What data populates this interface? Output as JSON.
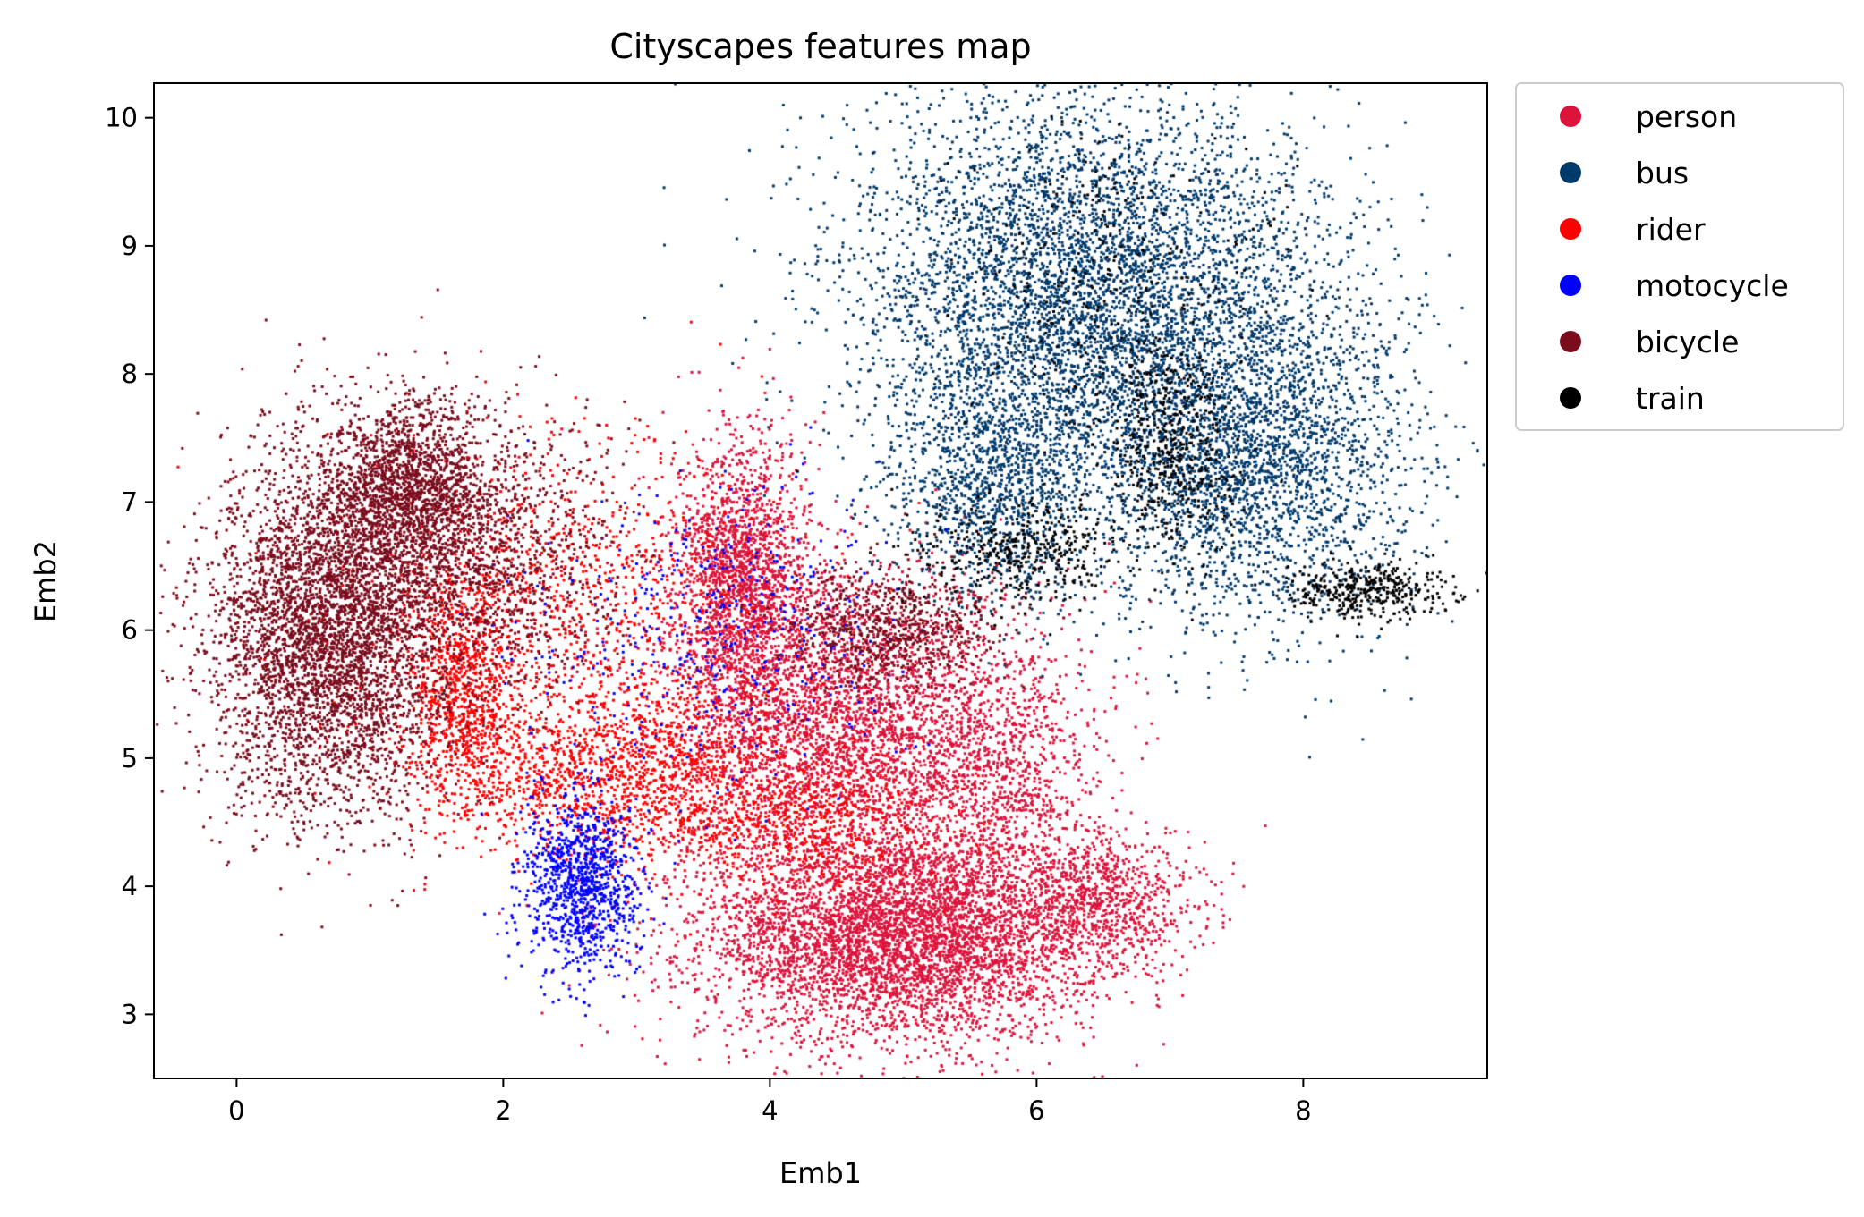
{
  "chart_data": {
    "type": "scatter",
    "title": "Cityscapes features map",
    "xlabel": "Emb1",
    "ylabel": "Emb2",
    "xlim": [
      -0.62,
      9.38
    ],
    "ylim": [
      2.5,
      10.27
    ],
    "xticks": [
      0,
      2,
      4,
      6,
      8
    ],
    "yticks": [
      3,
      4,
      5,
      6,
      7,
      8,
      9,
      10
    ],
    "xtick_labels": [
      "0",
      "2",
      "4",
      "6",
      "8"
    ],
    "ytick_labels": [
      "3",
      "4",
      "5",
      "6",
      "7",
      "8",
      "9",
      "10"
    ],
    "grid": false,
    "legend_position": "outside-top-right",
    "series": [
      {
        "name": "person",
        "color": "#dc143c",
        "approx_points": 12000,
        "clusters": [
          {
            "center": [
              5.0,
              3.6
            ],
            "spread": [
              0.75,
              0.4
            ],
            "weight": 0.42
          },
          {
            "center": [
              4.6,
              5.2
            ],
            "spread": [
              0.7,
              0.6
            ],
            "weight": 0.3
          },
          {
            "center": [
              3.8,
              6.4
            ],
            "spread": [
              0.25,
              0.55
            ],
            "weight": 0.16
          },
          {
            "center": [
              6.5,
              3.9
            ],
            "spread": [
              0.35,
              0.25
            ],
            "weight": 0.06
          },
          {
            "center": [
              5.8,
              4.9
            ],
            "spread": [
              0.35,
              0.5
            ],
            "weight": 0.06
          }
        ]
      },
      {
        "name": "bus",
        "color": "#003a6b",
        "approx_points": 9000,
        "clusters": [
          {
            "center": [
              6.4,
              8.7
            ],
            "spread": [
              0.9,
              0.75
            ],
            "weight": 0.55
          },
          {
            "center": [
              7.6,
              7.3
            ],
            "spread": [
              0.6,
              0.65
            ],
            "weight": 0.3
          },
          {
            "center": [
              5.7,
              7.2
            ],
            "spread": [
              0.4,
              0.5
            ],
            "weight": 0.15
          }
        ]
      },
      {
        "name": "rider",
        "color": "#ff0000",
        "approx_points": 4000,
        "clusters": [
          {
            "center": [
              2.8,
              4.9
            ],
            "spread": [
              0.7,
              0.35
            ],
            "weight": 0.4
          },
          {
            "center": [
              2.5,
              6.3
            ],
            "spread": [
              0.8,
              0.6
            ],
            "weight": 0.25
          },
          {
            "center": [
              4.3,
              4.5
            ],
            "spread": [
              0.5,
              0.3
            ],
            "weight": 0.15
          },
          {
            "center": [
              1.7,
              5.5
            ],
            "spread": [
              0.2,
              0.4
            ],
            "weight": 0.2
          }
        ]
      },
      {
        "name": "motocycle",
        "color": "#0000ff",
        "approx_points": 1500,
        "clusters": [
          {
            "center": [
              2.6,
              4.0
            ],
            "spread": [
              0.22,
              0.35
            ],
            "weight": 0.7
          },
          {
            "center": [
              3.6,
              6.0
            ],
            "spread": [
              0.7,
              0.6
            ],
            "weight": 0.3
          }
        ]
      },
      {
        "name": "bicycle",
        "color": "#7b0c1d",
        "approx_points": 8000,
        "clusters": [
          {
            "center": [
              0.7,
              6.0
            ],
            "spread": [
              0.45,
              0.7
            ],
            "weight": 0.55
          },
          {
            "center": [
              1.3,
              7.1
            ],
            "spread": [
              0.3,
              0.35
            ],
            "weight": 0.2
          },
          {
            "center": [
              1.9,
              6.5
            ],
            "spread": [
              0.5,
              0.55
            ],
            "weight": 0.15
          },
          {
            "center": [
              4.9,
              6.0
            ],
            "spread": [
              0.4,
              0.25
            ],
            "weight": 0.1
          }
        ]
      },
      {
        "name": "train",
        "color": "#000000",
        "approx_points": 1600,
        "clusters": [
          {
            "center": [
              7.0,
              7.4
            ],
            "spread": [
              0.25,
              0.4
            ],
            "weight": 0.3
          },
          {
            "center": [
              8.5,
              6.3
            ],
            "spread": [
              0.3,
              0.12
            ],
            "weight": 0.25
          },
          {
            "center": [
              6.5,
              8.7
            ],
            "spread": [
              0.6,
              0.6
            ],
            "weight": 0.2
          },
          {
            "center": [
              5.9,
              6.6
            ],
            "spread": [
              0.4,
              0.2
            ],
            "weight": 0.25
          }
        ]
      }
    ]
  }
}
